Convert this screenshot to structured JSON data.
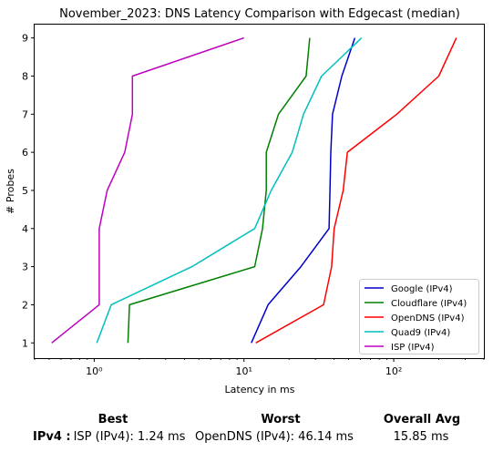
{
  "chart_data": {
    "type": "line",
    "title": "November_2023: DNS Latency Comparison with Edgecast (median)",
    "xlabel": "Latency in ms",
    "ylabel": "# Probes",
    "xscale": "log",
    "xlim": [
      0.4,
      400
    ],
    "ylim": [
      0.6,
      9.35
    ],
    "xticks": [
      {
        "value": 1,
        "label": "10⁰"
      },
      {
        "value": 10,
        "label": "10¹"
      },
      {
        "value": 100,
        "label": "10²"
      }
    ],
    "yticks": [
      1,
      2,
      3,
      4,
      5,
      6,
      7,
      8,
      9
    ],
    "legend_position": "lower-right",
    "grid": false,
    "series": [
      {
        "name": "Google (IPv4)",
        "color": "#0000cc",
        "points": [
          [
            11.2,
            1
          ],
          [
            14.5,
            2
          ],
          [
            24,
            3
          ],
          [
            37,
            4
          ],
          [
            37.5,
            5
          ],
          [
            38,
            6
          ],
          [
            39,
            7
          ],
          [
            45,
            8
          ],
          [
            55,
            9
          ]
        ]
      },
      {
        "name": "Cloudflare (IPv4)",
        "color": "#008000",
        "points": [
          [
            1.68,
            1
          ],
          [
            1.72,
            2
          ],
          [
            11.8,
            3
          ],
          [
            13.3,
            4
          ],
          [
            14.1,
            5
          ],
          [
            14.1,
            6
          ],
          [
            17,
            7
          ],
          [
            26,
            8
          ],
          [
            27.5,
            9
          ]
        ]
      },
      {
        "name": "OpenDNS (IPv4)",
        "color": "#ff0000",
        "points": [
          [
            12,
            1
          ],
          [
            34,
            2
          ],
          [
            38.5,
            3
          ],
          [
            40,
            4
          ],
          [
            46,
            5
          ],
          [
            49,
            6
          ],
          [
            105,
            7
          ],
          [
            200,
            8
          ],
          [
            262,
            9
          ]
        ]
      },
      {
        "name": "Quad9 (IPv4)",
        "color": "#00bfbf",
        "points": [
          [
            1.04,
            1
          ],
          [
            1.3,
            2
          ],
          [
            4.5,
            3
          ],
          [
            11.8,
            4
          ],
          [
            15.2,
            5
          ],
          [
            21,
            6
          ],
          [
            25,
            7
          ],
          [
            33,
            8
          ],
          [
            61,
            9
          ]
        ]
      },
      {
        "name": "ISP (IPv4)",
        "color": "#bf00bf",
        "points": [
          [
            0.52,
            1
          ],
          [
            1.08,
            2
          ],
          [
            1.08,
            3
          ],
          [
            1.08,
            4
          ],
          [
            1.22,
            5
          ],
          [
            1.6,
            6
          ],
          [
            1.8,
            7
          ],
          [
            1.8,
            8
          ],
          [
            10,
            9
          ]
        ]
      }
    ]
  },
  "summary": {
    "best_header": "Best",
    "worst_header": "Worst",
    "avg_header": "Overall Avg",
    "row_label": "IPv4 :",
    "best_value": "ISP (IPv4): 1.24 ms",
    "worst_value": "OpenDNS (IPv4): 46.14 ms",
    "avg_value": "15.85 ms"
  }
}
